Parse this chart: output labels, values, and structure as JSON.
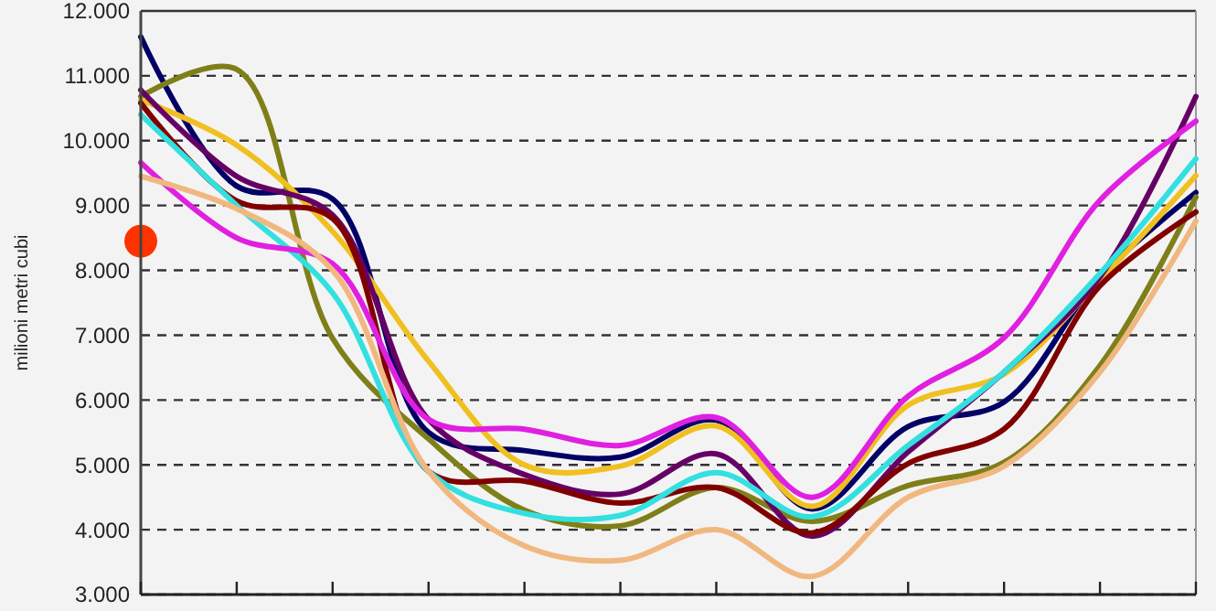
{
  "chart_data": {
    "type": "line",
    "ylabel": "milioni metri cubi",
    "categories": [
      null,
      null,
      null,
      null,
      null,
      null,
      null,
      null,
      null,
      null,
      null,
      null
    ],
    "ylim": [
      3000,
      12000
    ],
    "yticks": [
      {
        "value": 3000,
        "label": "3.000"
      },
      {
        "value": 4000,
        "label": "4.000"
      },
      {
        "value": 5000,
        "label": "5.000"
      },
      {
        "value": 6000,
        "label": "6.000"
      },
      {
        "value": 7000,
        "label": "7.000"
      },
      {
        "value": 8000,
        "label": "8.000"
      },
      {
        "value": 9000,
        "label": "9.000"
      },
      {
        "value": 10000,
        "label": "10.000"
      },
      {
        "value": 11000,
        "label": "11.000"
      },
      {
        "value": 12000,
        "label": "12.000"
      }
    ],
    "grid": "y",
    "tick_labels": "y",
    "marker": "none",
    "line_style": "solid",
    "series": [
      {
        "color": "#000066",
        "values": [
          11600,
          9300,
          9100,
          5500,
          5220,
          5120,
          5690,
          4320,
          5590,
          5970,
          7900,
          9200
        ]
      },
      {
        "color": "#7f7f1a",
        "values": [
          10680,
          11100,
          6950,
          5400,
          4300,
          4060,
          4650,
          4130,
          4680,
          5040,
          6530,
          9130
        ]
      },
      {
        "color": "#f0c020",
        "values": [
          10630,
          9930,
          8600,
          6600,
          5000,
          4980,
          5600,
          4360,
          5920,
          6400,
          7850,
          9460
        ]
      },
      {
        "color": "#660066",
        "values": [
          10780,
          9450,
          8850,
          5700,
          4850,
          4550,
          5170,
          3900,
          5200,
          6430,
          7900,
          10680
        ]
      },
      {
        "color": "#800000",
        "values": [
          10580,
          9070,
          8800,
          4900,
          4750,
          4410,
          4650,
          3950,
          5020,
          5550,
          7760,
          8900
        ]
      },
      {
        "color": "#33e0e0",
        "values": [
          10400,
          9000,
          7650,
          4900,
          4250,
          4220,
          4880,
          4200,
          5300,
          6430,
          7950,
          9720
        ]
      },
      {
        "color": "#e020e0",
        "values": [
          9660,
          8500,
          8100,
          5700,
          5550,
          5300,
          5730,
          4500,
          6060,
          6960,
          9080,
          10300
        ]
      },
      {
        "color": "#f0b880",
        "values": [
          9450,
          8950,
          8000,
          4900,
          3750,
          3530,
          4000,
          3280,
          4500,
          4980,
          6430,
          8760
        ]
      },
      {
        "type": "scatter",
        "marker": "circle",
        "color": "#ff3300",
        "values": [
          8450,
          null,
          null,
          null,
          null,
          null,
          null,
          null,
          null,
          null,
          null,
          null
        ]
      }
    ]
  }
}
